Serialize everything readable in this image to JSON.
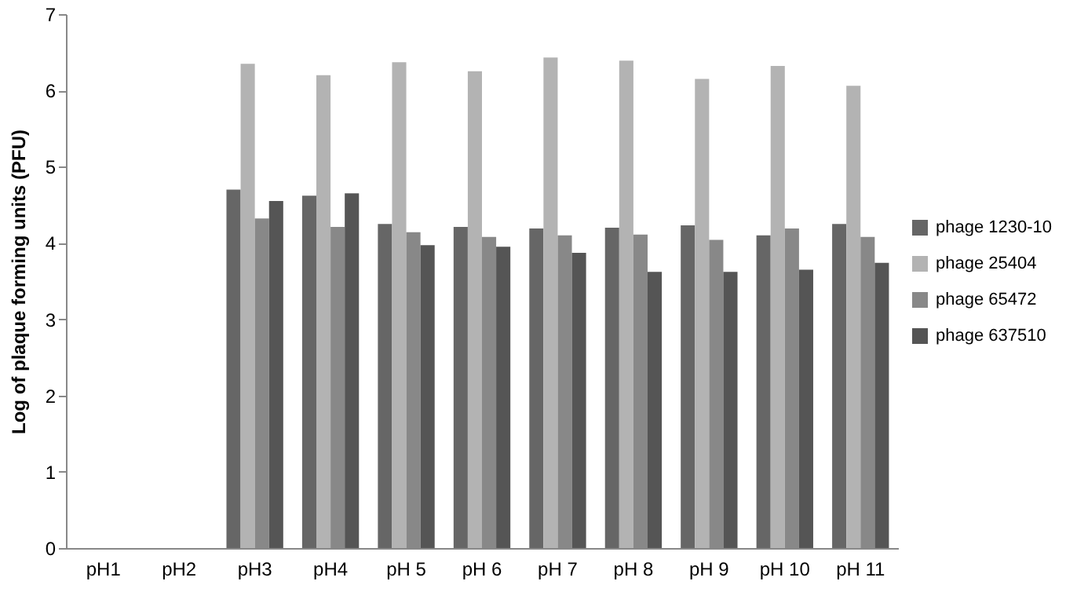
{
  "chart_data": {
    "type": "bar",
    "ylabel": "Log of plaque forming units (PFU)",
    "categories": [
      "pH1",
      "pH2",
      "pH3",
      "pH4",
      "pH 5",
      "pH 6",
      "pH 7",
      "pH 8",
      "pH 9",
      "pH 10",
      "pH 11"
    ],
    "series": [
      {
        "name": "phage 1230-10",
        "color": "#666666",
        "values": [
          null,
          null,
          4.7,
          4.62,
          4.25,
          4.21,
          4.19,
          4.2,
          4.23,
          4.1,
          4.25
        ]
      },
      {
        "name": "phage 25404",
        "color": "#b3b3b3",
        "values": [
          null,
          null,
          6.35,
          6.2,
          6.37,
          6.25,
          6.43,
          6.39,
          6.15,
          6.32,
          6.06
        ]
      },
      {
        "name": "phage 65472",
        "color": "#888888",
        "values": [
          null,
          null,
          4.32,
          4.21,
          4.14,
          4.08,
          4.1,
          4.11,
          4.04,
          4.19,
          4.08
        ]
      },
      {
        "name": "phage 637510",
        "color": "#555555",
        "values": [
          null,
          null,
          4.55,
          4.65,
          3.97,
          3.95,
          3.87,
          3.62,
          3.62,
          3.65,
          3.74
        ]
      }
    ],
    "ylim": [
      0,
      7
    ],
    "yticks": [
      0,
      1,
      2,
      3,
      4,
      5,
      6,
      7
    ],
    "grid": false,
    "legend": "right"
  }
}
